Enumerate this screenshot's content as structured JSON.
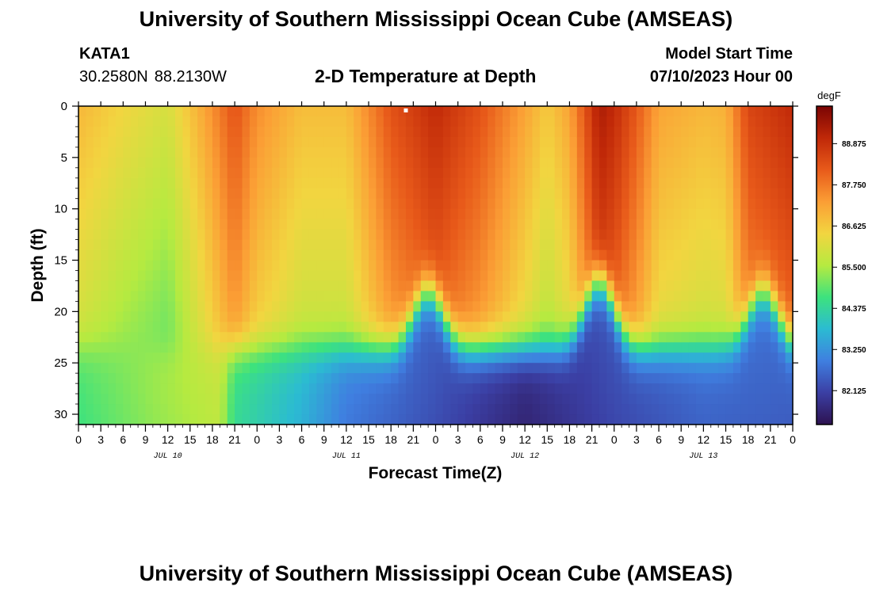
{
  "header": {
    "title": "University of Southern Mississippi Ocean Cube (AMSEAS)",
    "station_id": "KATA1",
    "latitude": "30.2580N",
    "longitude": "88.2130W",
    "subtitle": "2-D Temperature at Depth",
    "model_start_label": "Model Start Time",
    "model_start_value": "07/10/2023 Hour 00"
  },
  "footer": {
    "title": "University of Southern Mississippi Ocean Cube (AMSEAS)"
  },
  "chart_data": {
    "type": "heatmap",
    "title": "2-D Temperature at Depth",
    "xlabel": "Forecast Time(Z)",
    "ylabel": "Depth (ft)",
    "x_unit": "hours from 07/10/2023 00Z",
    "xlim": [
      0,
      96
    ],
    "ylim": [
      0,
      31
    ],
    "y_inverted": true,
    "x_ticks": [
      0,
      3,
      6,
      9,
      12,
      15,
      18,
      21,
      24,
      27,
      30,
      33,
      36,
      39,
      42,
      45,
      48,
      51,
      54,
      57,
      60,
      63,
      66,
      69,
      72,
      75,
      78,
      81,
      84,
      87,
      90,
      93,
      96
    ],
    "x_tick_labels": [
      "0",
      "3",
      "6",
      "9",
      "12",
      "15",
      "18",
      "21",
      "0",
      "3",
      "6",
      "9",
      "12",
      "15",
      "18",
      "21",
      "0",
      "3",
      "6",
      "9",
      "12",
      "15",
      "18",
      "21",
      "0",
      "3",
      "6",
      "9",
      "12",
      "15",
      "18",
      "21",
      "0"
    ],
    "day_labels": [
      {
        "label": "JUL 10",
        "hour": 12
      },
      {
        "label": "JUL 11",
        "hour": 36
      },
      {
        "label": "JUL 12",
        "hour": 60
      },
      {
        "label": "JUL 13",
        "hour": 84
      }
    ],
    "y_ticks": [
      0,
      5,
      10,
      15,
      20,
      25,
      30
    ],
    "colorbar": {
      "unit": "degF",
      "min": 81.2,
      "max": 89.9,
      "ticks": [
        88.875,
        87.75,
        86.625,
        85.5,
        84.375,
        83.25,
        82.125
      ],
      "tick_labels": [
        "88.875",
        "87.750",
        "86.625",
        "85.500",
        "84.375",
        "83.250",
        "82.125"
      ],
      "colors": [
        "#2d1250",
        "#3b3fa4",
        "#3f7fe0",
        "#2bbbd2",
        "#3de27e",
        "#b6ea40",
        "#f2d540",
        "#fb9e35",
        "#e85a1a",
        "#c02808",
        "#7a0403"
      ]
    },
    "surface_profile_hours": [
      0,
      6,
      12,
      17,
      21,
      24,
      30,
      36,
      42,
      48,
      54,
      60,
      63,
      66,
      70,
      72,
      75,
      78,
      84,
      87,
      90,
      96
    ],
    "surface_profile_degF": [
      86.9,
      86.4,
      86.0,
      87.2,
      88.3,
      87.5,
      86.8,
      86.8,
      88.3,
      89.0,
      88.3,
      87.2,
      86.6,
      87.2,
      89.3,
      89.0,
      88.2,
      87.2,
      86.9,
      87.0,
      88.5,
      89.0
    ],
    "thermocline": {
      "base_depth_ft": 22,
      "dome_peaks": [
        {
          "hour": 47,
          "depth_ft": 16.5
        },
        {
          "hour": 70,
          "depth_ft": 15.5
        },
        {
          "hour": 92,
          "depth_ft": 16.5
        }
      ]
    },
    "deep_profile_hours": [
      0,
      10,
      19,
      21,
      30,
      36,
      48,
      60,
      72,
      84,
      96
    ],
    "deep_profile_degF": [
      84.8,
      85.4,
      85.8,
      84.6,
      83.8,
      83.0,
      82.4,
      81.7,
      82.3,
      82.7,
      82.6
    ],
    "marker": {
      "hour": 44,
      "depth_ft": 0.3
    }
  }
}
